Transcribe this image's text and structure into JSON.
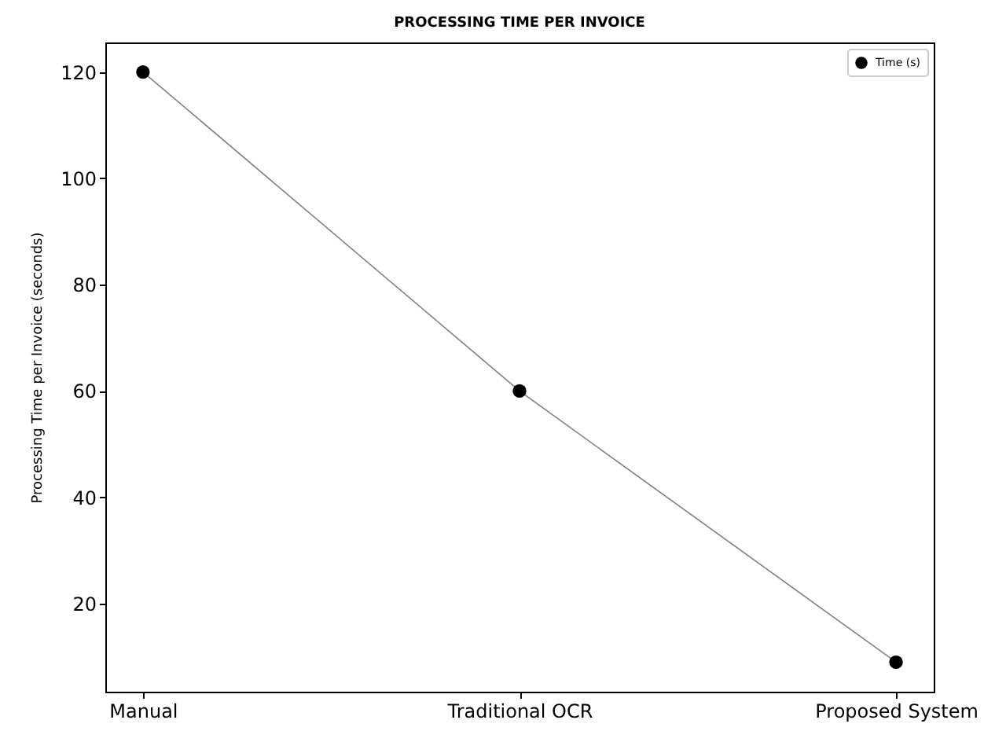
{
  "chart_data": {
    "type": "line",
    "title": "PROCESSING TIME PER INVOICE",
    "ylabel": "Processing Time per Invoice (seconds)",
    "categories": [
      "Manual",
      "Traditional OCR",
      "Proposed System"
    ],
    "series": [
      {
        "name": "Time (s)",
        "color": "#000000",
        "values": [
          120,
          60,
          9
        ]
      }
    ],
    "ylim": [
      3.45,
      125.55
    ],
    "yticks": [
      20,
      40,
      60,
      80,
      100,
      120
    ],
    "grid": false,
    "legend": "top right",
    "marker": "circle",
    "line_style": "solid"
  }
}
